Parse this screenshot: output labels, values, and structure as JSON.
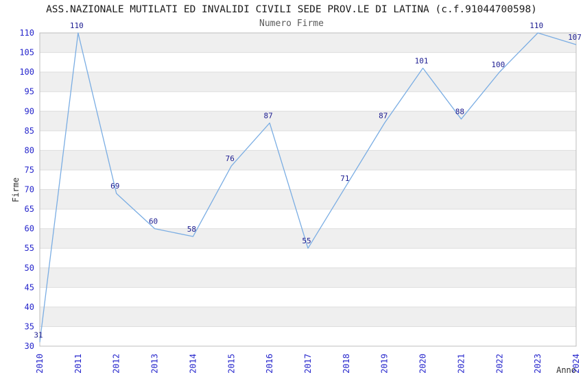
{
  "chart_data": {
    "type": "line",
    "title": "ASS.NAZIONALE MUTILATI ED INVALIDI CIVILI SEDE PROV.LE DI LATINA (c.f.91044700598)",
    "subtitle": "Numero Firme",
    "xlabel": "Anno",
    "ylabel": "Firme",
    "categories": [
      "2010",
      "2011",
      "2012",
      "2013",
      "2014",
      "2015",
      "2016",
      "2017",
      "2018",
      "2019",
      "2020",
      "2021",
      "2022",
      "2023",
      "2024"
    ],
    "series": [
      {
        "name": "Numero Firme",
        "values": [
          31,
          110,
          69,
          60,
          58,
          76,
          87,
          55,
          71,
          87,
          101,
          88,
          100,
          110,
          107
        ]
      }
    ],
    "ylim": [
      30,
      110
    ],
    "ytick_step": 5,
    "yticks": [
      30,
      35,
      40,
      45,
      50,
      55,
      60,
      65,
      70,
      75,
      80,
      85,
      90,
      95,
      100,
      105,
      110
    ],
    "grid": "horizontal-bands-alternating",
    "legend": "none",
    "markers": "none",
    "colors": {
      "line": "#7aade3",
      "value_label": "#1b1b90",
      "tick_label": "#2626cc",
      "band": "#efefef",
      "gridline": "#dedede",
      "plot_border": "#bdbdbd",
      "title": "#1a1a1a",
      "subtitle": "#5a5a5a",
      "axis_title": "#303030",
      "background": "#ffffff"
    }
  }
}
